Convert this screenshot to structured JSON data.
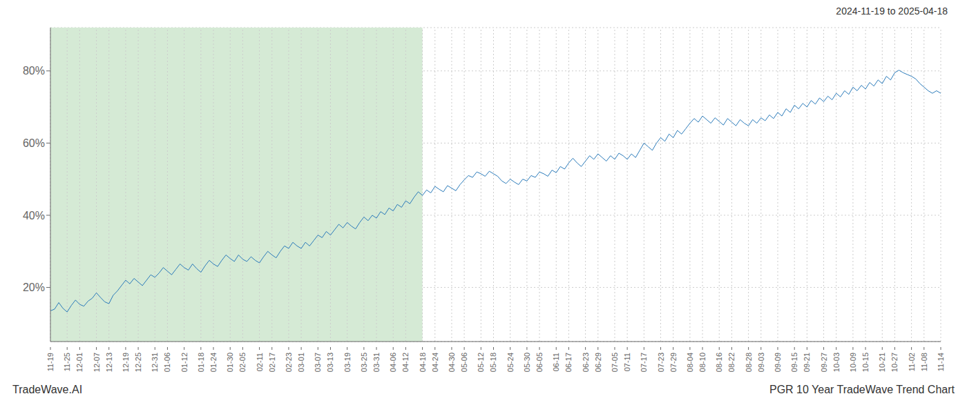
{
  "chart_data": {
    "type": "line",
    "title": "2024-11-19 to 2025-04-18",
    "annotations": [
      "TradeWave.AI",
      "PGR 10 Year TradeWave Trend Chart"
    ],
    "categories": [
      "11-19",
      null,
      null,
      null,
      "11-25",
      null,
      null,
      "12-01",
      null,
      null,
      null,
      "12-07",
      null,
      null,
      "12-13",
      null,
      null,
      null,
      "12-19",
      null,
      null,
      "12-25",
      null,
      null,
      null,
      "12-31",
      null,
      null,
      "01-06",
      null,
      null,
      null,
      "01-12",
      null,
      null,
      null,
      "01-18",
      null,
      null,
      "01-24",
      null,
      null,
      null,
      "01-30",
      null,
      null,
      "02-05",
      null,
      null,
      null,
      "02-11",
      null,
      null,
      "02-17",
      null,
      null,
      null,
      "02-23",
      null,
      null,
      "03-01",
      null,
      null,
      null,
      "03-07",
      null,
      null,
      "03-13",
      null,
      null,
      null,
      "03-19",
      null,
      null,
      null,
      "03-25",
      null,
      null,
      "03-31",
      null,
      null,
      null,
      "04-06",
      null,
      null,
      "04-12",
      null,
      null,
      null,
      "04-18",
      null,
      null,
      "04-24",
      null,
      null,
      null,
      "04-30",
      null,
      null,
      "05-06",
      null,
      null,
      null,
      "05-12",
      null,
      null,
      "05-18",
      null,
      null,
      null,
      "05-24",
      null,
      null,
      null,
      "05-30",
      null,
      null,
      "06-05",
      null,
      null,
      null,
      "06-11",
      null,
      null,
      "06-17",
      null,
      null,
      null,
      "06-23",
      null,
      null,
      "06-29",
      null,
      null,
      null,
      "07-05",
      null,
      null,
      "07-11",
      null,
      null,
      null,
      "07-17",
      null,
      null,
      null,
      "07-23",
      null,
      null,
      "07-29",
      null,
      null,
      null,
      "08-04",
      null,
      null,
      "08-10",
      null,
      null,
      null,
      "08-16",
      null,
      null,
      "08-22",
      null,
      null,
      null,
      "08-28",
      null,
      null,
      "09-03",
      null,
      null,
      null,
      "09-09",
      null,
      null,
      null,
      "09-15",
      null,
      null,
      "09-21",
      null,
      null,
      null,
      "09-27",
      null,
      null,
      "10-03",
      null,
      null,
      null,
      "10-09",
      null,
      null,
      "10-15",
      null,
      null,
      null,
      "10-21",
      null,
      null,
      "10-27",
      null,
      null,
      null,
      "11-02",
      null,
      null,
      "11-08",
      null,
      null,
      null,
      "11-14"
    ],
    "values": [
      13.5,
      14.0,
      15.8,
      14.2,
      13.2,
      15.0,
      16.5,
      15.3,
      14.8,
      16.2,
      17.0,
      18.5,
      17.2,
      16.0,
      15.5,
      17.8,
      19.0,
      20.5,
      22.0,
      21.0,
      22.5,
      21.5,
      20.5,
      22.0,
      23.5,
      22.8,
      24.0,
      25.5,
      24.5,
      23.5,
      25.0,
      26.5,
      25.5,
      24.8,
      26.5,
      25.2,
      24.2,
      26.0,
      27.5,
      26.5,
      25.8,
      27.5,
      29.0,
      28.0,
      27.2,
      29.0,
      27.8,
      27.2,
      28.5,
      27.5,
      26.8,
      28.5,
      30.0,
      29.0,
      28.2,
      30.0,
      31.5,
      30.8,
      32.5,
      31.5,
      30.8,
      32.5,
      31.5,
      33.0,
      34.5,
      33.8,
      35.5,
      34.5,
      36.0,
      37.5,
      36.5,
      38.0,
      37.0,
      36.2,
      38.0,
      39.5,
      38.5,
      40.0,
      39.2,
      41.0,
      40.2,
      42.0,
      41.2,
      43.0,
      42.2,
      44.0,
      43.2,
      45.0,
      46.5,
      45.5,
      47.0,
      46.2,
      48.0,
      47.2,
      46.5,
      48.2,
      47.5,
      46.8,
      48.5,
      49.8,
      51.0,
      50.5,
      52.0,
      51.5,
      50.8,
      52.2,
      51.5,
      50.8,
      49.5,
      48.8,
      50.0,
      49.2,
      48.5,
      50.0,
      49.5,
      51.0,
      50.5,
      52.0,
      51.5,
      50.8,
      52.5,
      51.8,
      53.5,
      52.8,
      54.5,
      55.8,
      54.5,
      53.5,
      55.0,
      56.5,
      55.5,
      57.0,
      56.0,
      55.0,
      56.5,
      55.5,
      57.2,
      56.5,
      55.5,
      57.0,
      56.0,
      58.0,
      60.0,
      59.0,
      58.0,
      60.0,
      61.5,
      60.5,
      62.5,
      61.5,
      63.5,
      62.5,
      64.0,
      65.5,
      66.8,
      65.8,
      67.5,
      66.5,
      65.5,
      67.0,
      66.0,
      65.0,
      66.8,
      65.8,
      64.8,
      66.5,
      65.5,
      64.8,
      66.5,
      65.5,
      67.0,
      66.2,
      67.8,
      66.8,
      68.5,
      67.5,
      69.5,
      68.5,
      70.5,
      69.5,
      71.0,
      70.0,
      71.8,
      70.8,
      72.5,
      71.5,
      73.0,
      72.0,
      73.8,
      72.8,
      74.5,
      73.5,
      75.5,
      74.5,
      76.0,
      75.0,
      76.8,
      75.8,
      77.5,
      76.5,
      78.5,
      77.5,
      79.5,
      80.2,
      79.5,
      79.0,
      78.5,
      77.8,
      76.5,
      75.5,
      74.5,
      73.8,
      74.5,
      73.8
    ],
    "color": "#2b7bba",
    "ylim": [
      5,
      92
    ],
    "yticks": [
      {
        "value": 20,
        "label": "20%"
      },
      {
        "value": 40,
        "label": "40%"
      },
      {
        "value": 60,
        "label": "60%"
      },
      {
        "value": 80,
        "label": "80%"
      }
    ],
    "grid": true,
    "shade": {
      "start": "11-19",
      "end": "04-18",
      "color": "#d5ead5"
    }
  }
}
